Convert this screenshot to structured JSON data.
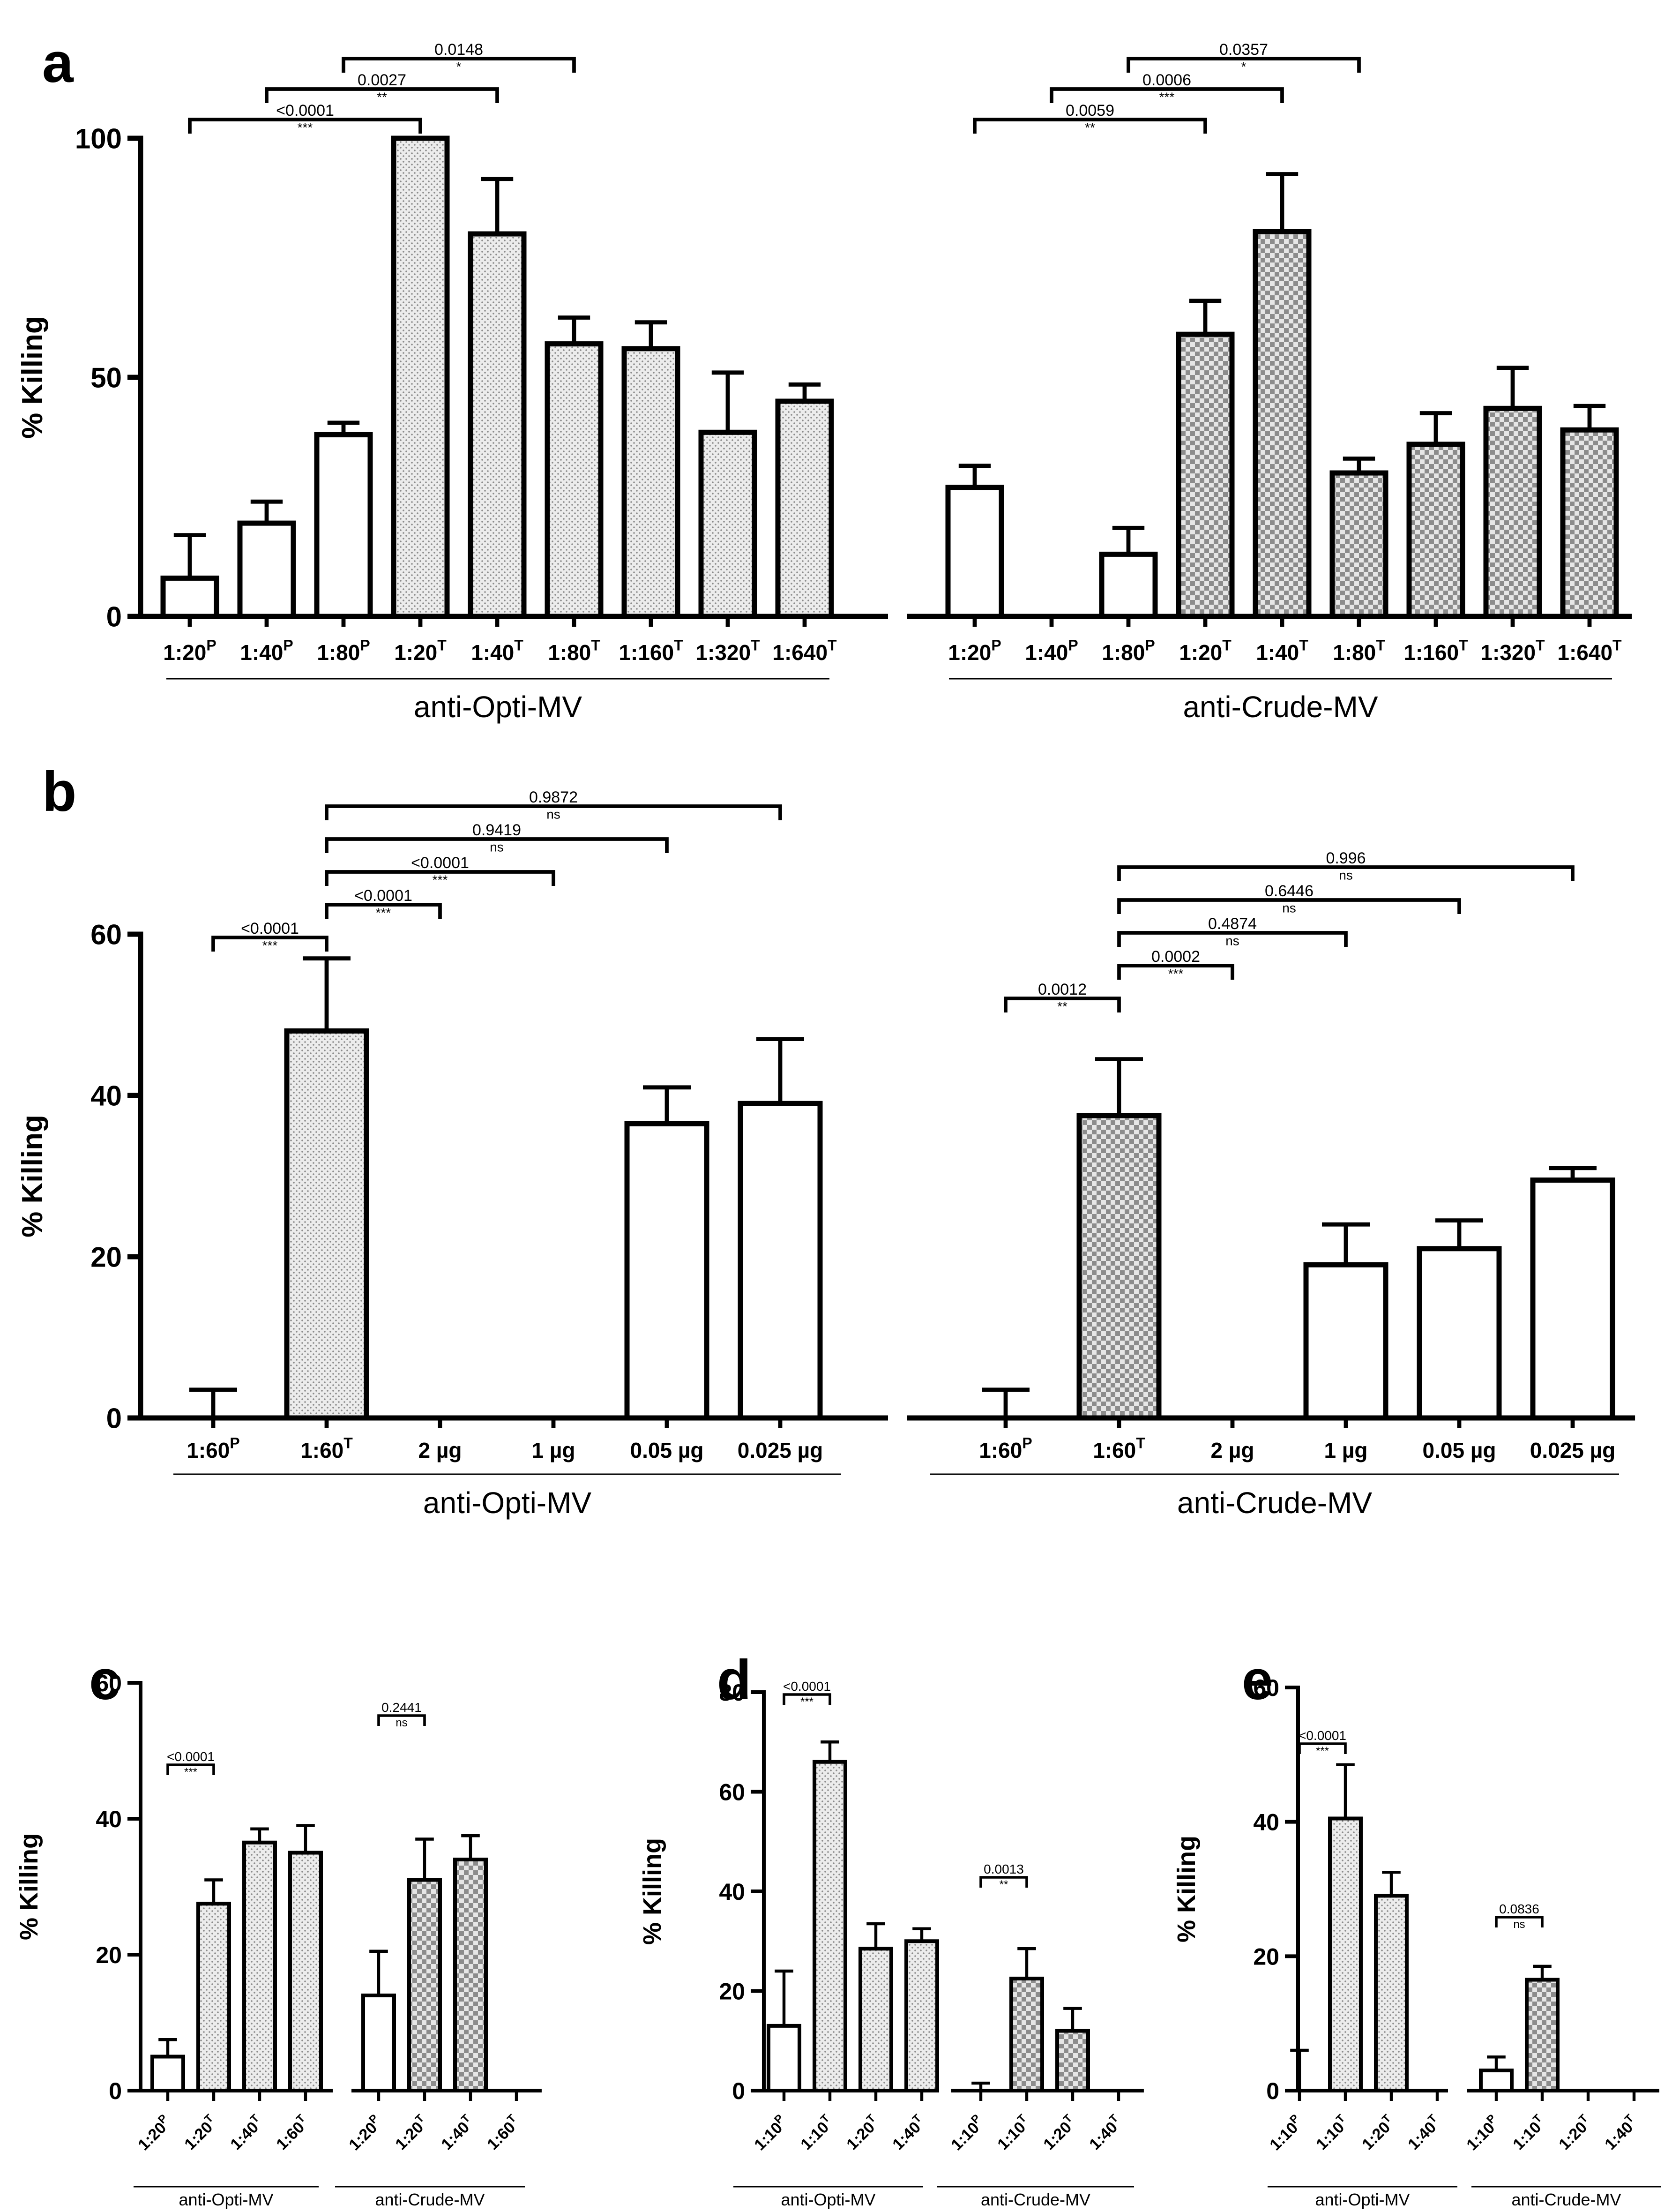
{
  "panels": [
    {
      "id": "a",
      "letter": "a",
      "ylabel": "% Killing",
      "ylim": [
        0,
        100
      ],
      "yticks": [
        0,
        50,
        100
      ],
      "groups": [
        {
          "name": "anti-Opti-MV",
          "bars": [
            {
              "label": "1:20",
              "sup": "P",
              "value": 8,
              "err": 9,
              "fill": "white"
            },
            {
              "label": "1:40",
              "sup": "P",
              "value": 19.5,
              "err": 4.5,
              "fill": "white"
            },
            {
              "label": "1:80",
              "sup": "P",
              "value": 38,
              "err": 2.5,
              "fill": "white"
            },
            {
              "label": "1:20",
              "sup": "T",
              "value": 100,
              "err": 0,
              "fill": "dots"
            },
            {
              "label": "1:40",
              "sup": "T",
              "value": 80,
              "err": 11.5,
              "fill": "dots"
            },
            {
              "label": "1:80",
              "sup": "T",
              "value": 57,
              "err": 5.5,
              "fill": "dots"
            },
            {
              "label": "1:160",
              "sup": "T",
              "value": 56,
              "err": 5.5,
              "fill": "dots"
            },
            {
              "label": "1:320",
              "sup": "T",
              "value": 38.5,
              "err": 12.5,
              "fill": "dots"
            },
            {
              "label": "1:640",
              "sup": "T",
              "value": 45,
              "err": 3.5,
              "fill": "dots"
            }
          ]
        },
        {
          "name": "anti-Crude-MV",
          "bars": [
            {
              "label": "1:20",
              "sup": "P",
              "value": 27,
              "err": 4.5,
              "fill": "white"
            },
            {
              "label": "1:40",
              "sup": "P",
              "value": 0,
              "err": 0,
              "fill": "white"
            },
            {
              "label": "1:80",
              "sup": "P",
              "value": 13,
              "err": 5.5,
              "fill": "white"
            },
            {
              "label": "1:20",
              "sup": "T",
              "value": 59,
              "err": 7,
              "fill": "checker"
            },
            {
              "label": "1:40",
              "sup": "T",
              "value": 80.5,
              "err": 12,
              "fill": "checker"
            },
            {
              "label": "1:80",
              "sup": "T",
              "value": 30,
              "err": 3,
              "fill": "checker"
            },
            {
              "label": "1:160",
              "sup": "T",
              "value": 36,
              "err": 6.5,
              "fill": "checker"
            },
            {
              "label": "1:320",
              "sup": "T",
              "value": 43.5,
              "err": 8.5,
              "fill": "checker"
            },
            {
              "label": "1:640",
              "sup": "T",
              "value": 39,
              "err": 5,
              "fill": "checker"
            }
          ]
        }
      ],
      "brackets": [
        {
          "group": 0,
          "from": 0,
          "to": 3,
          "p": "<0.0001",
          "sig": "***"
        },
        {
          "group": 0,
          "from": 1,
          "to": 4,
          "p": "0.0027",
          "sig": "**"
        },
        {
          "group": 0,
          "from": 2,
          "to": 5,
          "p": "0.0148",
          "sig": "*"
        },
        {
          "group": 1,
          "from": 0,
          "to": 3,
          "p": "0.0059",
          "sig": "**"
        },
        {
          "group": 1,
          "from": 1,
          "to": 4,
          "p": "0.0006",
          "sig": "***"
        },
        {
          "group": 1,
          "from": 2,
          "to": 5,
          "p": "0.0357",
          "sig": "*"
        }
      ]
    },
    {
      "id": "b",
      "letter": "b",
      "ylabel": "% Killing",
      "ylim": [
        0,
        60
      ],
      "yticks": [
        0,
        20,
        40,
        60
      ],
      "groups": [
        {
          "name": "anti-Opti-MV",
          "bars": [
            {
              "label": "1:60",
              "sup": "P",
              "value": 0,
              "err": 3.5,
              "fill": "white"
            },
            {
              "label": "1:60",
              "sup": "T",
              "value": 48,
              "err": 9,
              "fill": "dots"
            },
            {
              "label": "2 µg",
              "sup": "",
              "value": 0,
              "err": 0,
              "fill": "white"
            },
            {
              "label": "1 µg",
              "sup": "",
              "value": 0,
              "err": 0,
              "fill": "white"
            },
            {
              "label": "0.05 µg",
              "sup": "",
              "value": 36.5,
              "err": 4.5,
              "fill": "white"
            },
            {
              "label": "0.025 µg",
              "sup": "",
              "value": 39,
              "err": 8,
              "fill": "white"
            }
          ]
        },
        {
          "name": "anti-Crude-MV",
          "bars": [
            {
              "label": "1:60",
              "sup": "P",
              "value": 0,
              "err": 3.5,
              "fill": "white"
            },
            {
              "label": "1:60",
              "sup": "T",
              "value": 37.5,
              "err": 7,
              "fill": "checker"
            },
            {
              "label": "2 µg",
              "sup": "",
              "value": 0,
              "err": 0,
              "fill": "white"
            },
            {
              "label": "1 µg",
              "sup": "",
              "value": 19,
              "err": 5,
              "fill": "white"
            },
            {
              "label": "0.05 µg",
              "sup": "",
              "value": 21,
              "err": 3.5,
              "fill": "white"
            },
            {
              "label": "0.025 µg",
              "sup": "",
              "value": 29.5,
              "err": 1.5,
              "fill": "white"
            }
          ]
        }
      ],
      "brackets": [
        {
          "group": 0,
          "from": 0,
          "to": 1,
          "p": "<0.0001",
          "sig": "***"
        },
        {
          "group": 0,
          "from": 1,
          "to": 2,
          "p": "<0.0001",
          "sig": "***"
        },
        {
          "group": 0,
          "from": 1,
          "to": 3,
          "p": "<0.0001",
          "sig": "***"
        },
        {
          "group": 0,
          "from": 1,
          "to": 4,
          "p": "0.9419",
          "sig": "ns"
        },
        {
          "group": 0,
          "from": 1,
          "to": 5,
          "p": "0.9872",
          "sig": "ns"
        },
        {
          "group": 1,
          "from": 0,
          "to": 1,
          "p": "0.0012",
          "sig": "**"
        },
        {
          "group": 1,
          "from": 1,
          "to": 2,
          "p": "0.0002",
          "sig": "***"
        },
        {
          "group": 1,
          "from": 1,
          "to": 3,
          "p": "0.4874",
          "sig": "ns"
        },
        {
          "group": 1,
          "from": 1,
          "to": 4,
          "p": "0.6446",
          "sig": "ns"
        },
        {
          "group": 1,
          "from": 1,
          "to": 5,
          "p": "0.996",
          "sig": "ns"
        }
      ]
    },
    {
      "id": "c",
      "letter": "c",
      "ylabel": "% Killing",
      "ylim": [
        0,
        60
      ],
      "yticks": [
        0,
        20,
        40,
        60
      ],
      "groups": [
        {
          "name": "anti-Opti-MV",
          "bars": [
            {
              "label": "1:20",
              "sup": "P",
              "value": 5,
              "err": 2.5,
              "fill": "white"
            },
            {
              "label": "1:20",
              "sup": "T",
              "value": 27.5,
              "err": 3.5,
              "fill": "dots"
            },
            {
              "label": "1:40",
              "sup": "T",
              "value": 36.5,
              "err": 2,
              "fill": "dots"
            },
            {
              "label": "1:60",
              "sup": "T",
              "value": 35,
              "err": 4,
              "fill": "dots"
            }
          ]
        },
        {
          "name": "anti-Crude-MV",
          "bars": [
            {
              "label": "1:20",
              "sup": "P",
              "value": 14,
              "err": 6.5,
              "fill": "white"
            },
            {
              "label": "1:20",
              "sup": "T",
              "value": 31,
              "err": 6,
              "fill": "checker"
            },
            {
              "label": "1:40",
              "sup": "T",
              "value": 34,
              "err": 3.5,
              "fill": "checker"
            },
            {
              "label": "1:60",
              "sup": "T",
              "value": 0,
              "err": 0,
              "fill": "checker"
            }
          ]
        }
      ],
      "brackets": [
        {
          "group": 0,
          "from": 0,
          "to": 1,
          "p": "<0.0001",
          "sig": "***"
        },
        {
          "group": 1,
          "from": 0,
          "to": 1,
          "p": "0.2441",
          "sig": "ns"
        }
      ]
    },
    {
      "id": "d",
      "letter": "d",
      "ylabel": "% Killing",
      "ylim": [
        0,
        80
      ],
      "yticks": [
        0,
        20,
        40,
        60,
        80
      ],
      "groups": [
        {
          "name": "anti-Opti-MV",
          "bars": [
            {
              "label": "1:10",
              "sup": "P",
              "value": 13,
              "err": 11,
              "fill": "white"
            },
            {
              "label": "1:10",
              "sup": "T",
              "value": 66,
              "err": 4,
              "fill": "dots"
            },
            {
              "label": "1:20",
              "sup": "T",
              "value": 28.5,
              "err": 5,
              "fill": "dots"
            },
            {
              "label": "1:40",
              "sup": "T",
              "value": 30,
              "err": 2.5,
              "fill": "dots"
            }
          ]
        },
        {
          "name": "anti-Crude-MV",
          "bars": [
            {
              "label": "1:10",
              "sup": "P",
              "value": 0,
              "err": 1.5,
              "fill": "white"
            },
            {
              "label": "1:10",
              "sup": "T",
              "value": 22.5,
              "err": 6,
              "fill": "checker"
            },
            {
              "label": "1:20",
              "sup": "T",
              "value": 12,
              "err": 4.5,
              "fill": "checker"
            },
            {
              "label": "1:40",
              "sup": "T",
              "value": 0,
              "err": 0,
              "fill": "checker"
            }
          ]
        }
      ],
      "brackets": [
        {
          "group": 0,
          "from": 0,
          "to": 1,
          "p": "<0.0001",
          "sig": "***"
        },
        {
          "group": 1,
          "from": 0,
          "to": 1,
          "p": "0.0013",
          "sig": "**"
        }
      ]
    },
    {
      "id": "e",
      "letter": "e",
      "ylabel": "% Killing",
      "ylim": [
        0,
        60
      ],
      "yticks": [
        0,
        20,
        40,
        60
      ],
      "groups": [
        {
          "name": "anti-Opti-MV",
          "bars": [
            {
              "label": "1:10",
              "sup": "P",
              "value": 0,
              "err": 6,
              "fill": "white"
            },
            {
              "label": "1:10",
              "sup": "T",
              "value": 40.5,
              "err": 8,
              "fill": "dots"
            },
            {
              "label": "1:20",
              "sup": "T",
              "value": 29,
              "err": 3.5,
              "fill": "dots"
            },
            {
              "label": "1:40",
              "sup": "T",
              "value": 0,
              "err": 0,
              "fill": "dots"
            }
          ]
        },
        {
          "name": "anti-Crude-MV",
          "bars": [
            {
              "label": "1:10",
              "sup": "P",
              "value": 3,
              "err": 2,
              "fill": "white"
            },
            {
              "label": "1:10",
              "sup": "T",
              "value": 16.5,
              "err": 2,
              "fill": "checker"
            },
            {
              "label": "1:20",
              "sup": "T",
              "value": 0,
              "err": 0,
              "fill": "checker"
            },
            {
              "label": "1:40",
              "sup": "T",
              "value": 0,
              "err": 0,
              "fill": "checker"
            }
          ]
        }
      ],
      "brackets": [
        {
          "group": 0,
          "from": 0,
          "to": 1,
          "p": "<0.0001",
          "sig": "***"
        },
        {
          "group": 1,
          "from": 0,
          "to": 1,
          "p": "0.0836",
          "sig": "ns"
        }
      ]
    }
  ],
  "chart_data": [
    {
      "type": "bar",
      "panel": "a",
      "ylabel": "% Killing",
      "ylim": [
        0,
        100
      ],
      "categories": [
        "1:20P",
        "1:40P",
        "1:80P",
        "1:20T",
        "1:40T",
        "1:80T",
        "1:160T",
        "1:320T",
        "1:640T"
      ],
      "series": [
        {
          "name": "anti-Opti-MV",
          "values": [
            8,
            19.5,
            38,
            100,
            80,
            57,
            56,
            38.5,
            45
          ],
          "errors": [
            9,
            4.5,
            2.5,
            0,
            11.5,
            5.5,
            5.5,
            12.5,
            3.5
          ]
        },
        {
          "name": "anti-Crude-MV",
          "values": [
            27,
            0,
            13,
            59,
            80.5,
            30,
            36,
            43.5,
            39
          ],
          "errors": [
            4.5,
            0,
            5.5,
            7,
            12,
            3,
            6.5,
            8.5,
            5
          ]
        }
      ]
    },
    {
      "type": "bar",
      "panel": "b",
      "ylabel": "% Killing",
      "ylim": [
        0,
        60
      ],
      "categories": [
        "1:60P",
        "1:60T",
        "2 µg",
        "1 µg",
        "0.05 µg",
        "0.025 µg"
      ],
      "series": [
        {
          "name": "anti-Opti-MV",
          "values": [
            0,
            48,
            0,
            0,
            36.5,
            39
          ],
          "errors": [
            3.5,
            9,
            0,
            0,
            4.5,
            8
          ]
        },
        {
          "name": "anti-Crude-MV",
          "values": [
            0,
            37.5,
            0,
            19,
            21,
            29.5
          ],
          "errors": [
            3.5,
            7,
            0,
            5,
            3.5,
            1.5
          ]
        }
      ]
    },
    {
      "type": "bar",
      "panel": "c",
      "ylabel": "% Killing",
      "ylim": [
        0,
        60
      ],
      "categories": [
        "1:20P",
        "1:20T",
        "1:40T",
        "1:60T"
      ],
      "series": [
        {
          "name": "anti-Opti-MV",
          "values": [
            5,
            27.5,
            36.5,
            35
          ],
          "errors": [
            2.5,
            3.5,
            2,
            4
          ]
        },
        {
          "name": "anti-Crude-MV",
          "values": [
            14,
            31,
            34,
            0
          ],
          "errors": [
            6.5,
            6,
            3.5,
            0
          ]
        }
      ]
    },
    {
      "type": "bar",
      "panel": "d",
      "ylabel": "% Killing",
      "ylim": [
        0,
        80
      ],
      "categories": [
        "1:10P",
        "1:10T",
        "1:20T",
        "1:40T"
      ],
      "series": [
        {
          "name": "anti-Opti-MV",
          "values": [
            13,
            66,
            28.5,
            30
          ],
          "errors": [
            11,
            4,
            5,
            2.5
          ]
        },
        {
          "name": "anti-Crude-MV",
          "values": [
            0,
            22.5,
            12,
            0
          ],
          "errors": [
            1.5,
            6,
            4.5,
            0
          ]
        }
      ]
    },
    {
      "type": "bar",
      "panel": "e",
      "ylabel": "% Killing",
      "ylim": [
        0,
        60
      ],
      "categories": [
        "1:10P",
        "1:10T",
        "1:20T",
        "1:40T"
      ],
      "series": [
        {
          "name": "anti-Opti-MV",
          "values": [
            0,
            40.5,
            29,
            0
          ],
          "errors": [
            6,
            8,
            3.5,
            0
          ]
        },
        {
          "name": "anti-Crude-MV",
          "values": [
            3,
            16.5,
            0,
            0
          ],
          "errors": [
            2,
            2,
            0,
            0
          ]
        }
      ]
    }
  ]
}
